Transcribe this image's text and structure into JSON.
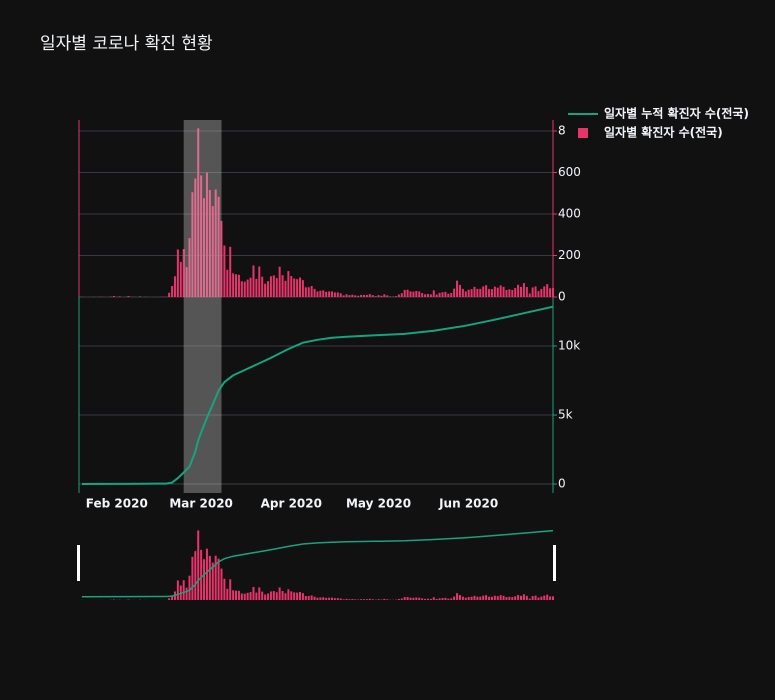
{
  "chart_data": [
    {
      "type": "bar",
      "title": "일자별 코로나 확진 현황",
      "x": [
        "2020-01-20",
        "2020-01-21",
        "2020-01-22",
        "2020-01-23",
        "2020-01-24",
        "2020-01-25",
        "2020-01-26",
        "2020-01-27",
        "2020-01-28",
        "2020-01-29",
        "2020-01-30",
        "2020-01-31",
        "2020-02-01",
        "2020-02-02",
        "2020-02-03",
        "2020-02-04",
        "2020-02-05",
        "2020-02-06",
        "2020-02-07",
        "2020-02-08",
        "2020-02-09",
        "2020-02-10",
        "2020-02-11",
        "2020-02-12",
        "2020-02-13",
        "2020-02-14",
        "2020-02-15",
        "2020-02-16",
        "2020-02-17",
        "2020-02-18",
        "2020-02-19",
        "2020-02-20",
        "2020-02-21",
        "2020-02-22",
        "2020-02-23",
        "2020-02-24",
        "2020-02-25",
        "2020-02-26",
        "2020-02-27",
        "2020-02-28",
        "2020-02-29",
        "2020-03-01",
        "2020-03-02",
        "2020-03-03",
        "2020-03-04",
        "2020-03-05",
        "2020-03-06",
        "2020-03-07",
        "2020-03-08",
        "2020-03-09",
        "2020-03-10",
        "2020-03-11",
        "2020-03-12",
        "2020-03-13",
        "2020-03-14",
        "2020-03-15",
        "2020-03-16",
        "2020-03-17",
        "2020-03-18",
        "2020-03-19",
        "2020-03-20",
        "2020-03-21",
        "2020-03-22",
        "2020-03-23",
        "2020-03-24",
        "2020-03-25",
        "2020-03-26",
        "2020-03-27",
        "2020-03-28",
        "2020-03-29",
        "2020-03-30",
        "2020-03-31",
        "2020-04-01",
        "2020-04-02",
        "2020-04-03",
        "2020-04-04",
        "2020-04-05",
        "2020-04-06",
        "2020-04-07",
        "2020-04-08",
        "2020-04-09",
        "2020-04-10",
        "2020-04-11",
        "2020-04-12",
        "2020-04-13",
        "2020-04-14",
        "2020-04-15",
        "2020-04-16",
        "2020-04-17",
        "2020-04-18",
        "2020-04-19",
        "2020-04-20",
        "2020-04-21",
        "2020-04-22",
        "2020-04-23",
        "2020-04-24",
        "2020-04-25",
        "2020-04-26",
        "2020-04-27",
        "2020-04-28",
        "2020-04-29",
        "2020-04-30",
        "2020-05-01",
        "2020-05-02",
        "2020-05-03",
        "2020-05-04",
        "2020-05-05",
        "2020-05-06",
        "2020-05-07",
        "2020-05-08",
        "2020-05-09",
        "2020-05-10",
        "2020-05-11",
        "2020-05-12",
        "2020-05-13",
        "2020-05-14",
        "2020-05-15",
        "2020-05-16",
        "2020-05-17",
        "2020-05-18",
        "2020-05-19",
        "2020-05-20",
        "2020-05-21",
        "2020-05-22",
        "2020-05-23",
        "2020-05-24",
        "2020-05-25",
        "2020-05-26",
        "2020-05-27",
        "2020-05-28",
        "2020-05-29",
        "2020-05-30",
        "2020-05-31",
        "2020-06-01",
        "2020-06-02",
        "2020-06-03",
        "2020-06-04",
        "2020-06-05",
        "2020-06-06",
        "2020-06-07",
        "2020-06-08",
        "2020-06-09",
        "2020-06-10",
        "2020-06-11",
        "2020-06-12",
        "2020-06-13",
        "2020-06-14",
        "2020-06-15",
        "2020-06-16",
        "2020-06-17",
        "2020-06-18",
        "2020-06-19",
        "2020-06-20",
        "2020-06-21",
        "2020-06-22",
        "2020-06-23",
        "2020-06-24",
        "2020-06-25",
        "2020-06-26",
        "2020-06-27",
        "2020-06-28",
        "2020-06-29",
        "2020-06-30"
      ],
      "series": [
        {
          "name": "일자별 확진자 수(전국)",
          "color": "#e8336b",
          "values": [
            1,
            0,
            0,
            0,
            1,
            0,
            1,
            1,
            0,
            0,
            2,
            5,
            1,
            3,
            0,
            1,
            5,
            1,
            1,
            0,
            3,
            0,
            1,
            0,
            0,
            0,
            0,
            1,
            1,
            1,
            20,
            53,
            100,
            229,
            169,
            231,
            144,
            284,
            505,
            571,
            813,
            586,
            476,
            600,
            516,
            438,
            518,
            483,
            367,
            248,
            131,
            242,
            114,
            110,
            107,
            76,
            74,
            84,
            93,
            152,
            87,
            147,
            98,
            64,
            76,
            100,
            104,
            91,
            146,
            105,
            78,
            125,
            101,
            89,
            86,
            94,
            81,
            47,
            47,
            53,
            39,
            27,
            30,
            32,
            25,
            27,
            27,
            22,
            22,
            18,
            8,
            13,
            9,
            11,
            8,
            6,
            10,
            10,
            10,
            14,
            9,
            4,
            9,
            6,
            13,
            8,
            3,
            2,
            4,
            12,
            18,
            34,
            35,
            27,
            26,
            29,
            27,
            19,
            13,
            15,
            13,
            32,
            12,
            20,
            23,
            25,
            16,
            19,
            40,
            79,
            58,
            39,
            27,
            35,
            38,
            49,
            39,
            39,
            51,
            57,
            38,
            38,
            50,
            45,
            56,
            49,
            34,
            37,
            34,
            43,
            59,
            49,
            67,
            48,
            17,
            46,
            51,
            28,
            39,
            51,
            62,
            42,
            43
          ]
        }
      ],
      "xlim": [
        "2020-01-19",
        "2020-06-30"
      ],
      "ylim": [
        0,
        853
      ],
      "yticks": [
        0,
        200,
        400,
        600,
        800
      ],
      "grid": true
    },
    {
      "type": "line",
      "x": [
        "2020-01-20",
        "2020-02-01",
        "2020-02-15",
        "2020-02-18",
        "2020-02-20",
        "2020-02-22",
        "2020-02-24",
        "2020-02-26",
        "2020-02-28",
        "2020-02-29",
        "2020-03-01",
        "2020-03-03",
        "2020-03-05",
        "2020-03-07",
        "2020-03-09",
        "2020-03-12",
        "2020-03-15",
        "2020-03-20",
        "2020-03-25",
        "2020-03-31",
        "2020-04-05",
        "2020-04-10",
        "2020-04-15",
        "2020-04-20",
        "2020-04-30",
        "2020-05-10",
        "2020-05-20",
        "2020-05-31",
        "2020-06-10",
        "2020-06-20",
        "2020-06-30"
      ],
      "series": [
        {
          "name": "일자별 누적 확진자 수(전국)",
          "color": "#17a47d",
          "values": [
            1,
            12,
            28,
            31,
            104,
            433,
            833,
            1261,
            2337,
            3150,
            3736,
            4812,
            5766,
            6767,
            7382,
            7869,
            8162,
            8652,
            9137,
            9786,
            10237,
            10450,
            10591,
            10674,
            10774,
            10874,
            11110,
            11468,
            11902,
            12373,
            12850
          ]
        }
      ],
      "xlim": [
        "2020-01-19",
        "2020-06-30"
      ],
      "xticks": [
        {
          "value": "2020-02-01",
          "label": "Feb 2020"
        },
        {
          "value": "2020-03-01",
          "label": "Mar 2020"
        },
        {
          "value": "2020-04-01",
          "label": "Apr 2020"
        },
        {
          "value": "2020-05-01",
          "label": "May 2020"
        },
        {
          "value": "2020-06-01",
          "label": "Jun 2020"
        }
      ],
      "ylim": [
        -650,
        13550
      ],
      "yticks": [
        0,
        {
          "value": 5000,
          "label": "5k"
        },
        {
          "value": 10000,
          "label": "10k"
        }
      ],
      "grid": true,
      "highlight": [
        "2020-02-24",
        "2020-03-08"
      ],
      "rangeslider": true,
      "legend": "top-right"
    }
  ]
}
